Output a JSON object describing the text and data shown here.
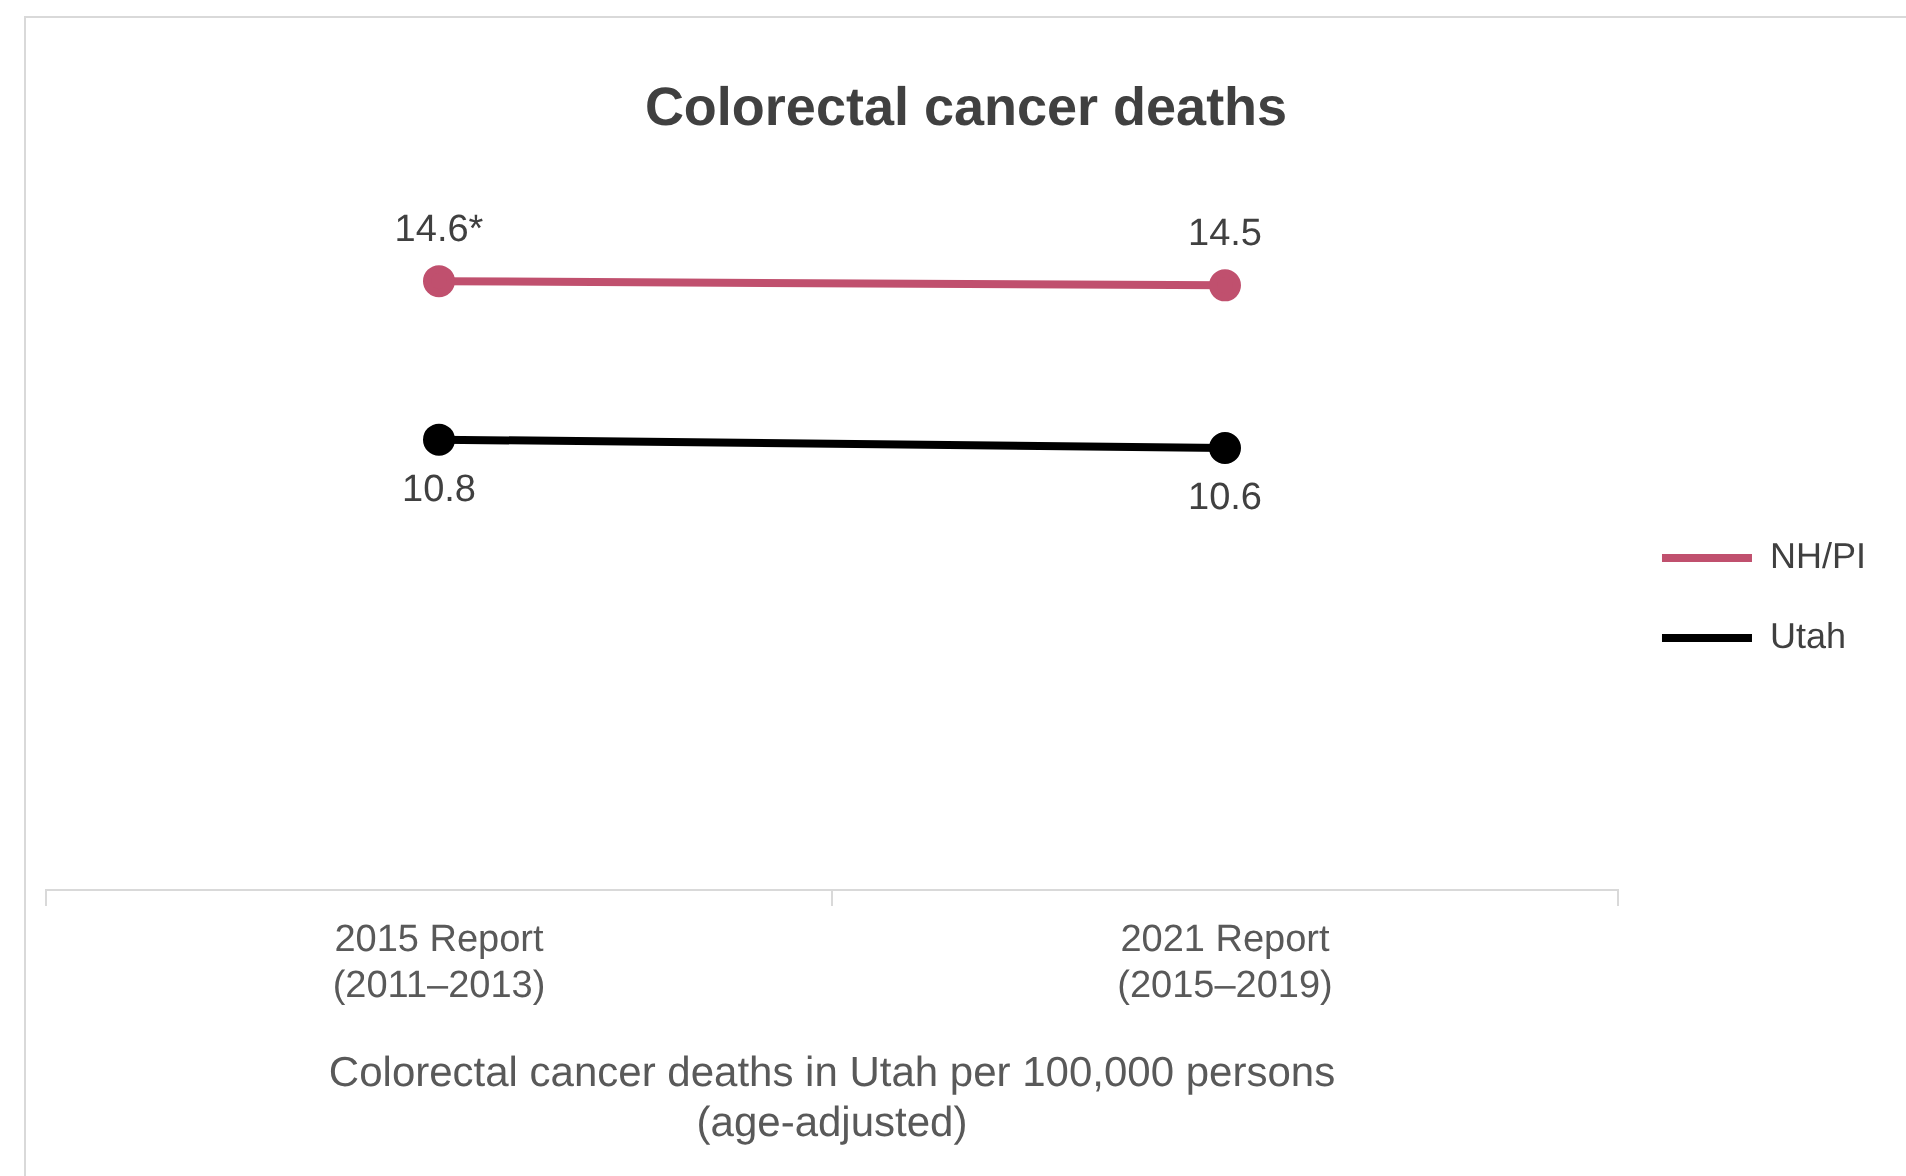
{
  "chart_data": {
    "type": "line",
    "title": "Colorectal cancer deaths",
    "xlabel": "Colorectal cancer deaths in Utah per 100,000 persons\n(age-adjusted)",
    "categories": [
      "2015 Report\n(2011–2013)",
      "2021 Report\n(2015–2019)"
    ],
    "series": [
      {
        "name": "NH/PI",
        "color": "#c0506e",
        "values": [
          14.6,
          14.5
        ],
        "value_labels": [
          "14.6*",
          "14.5"
        ]
      },
      {
        "name": "Utah",
        "color": "#000000",
        "values": [
          10.8,
          10.6
        ],
        "value_labels": [
          "10.8",
          "10.6"
        ]
      }
    ],
    "data_labels": true,
    "legend": "right",
    "marker": "circle",
    "line_style": "solid",
    "grid": false
  }
}
